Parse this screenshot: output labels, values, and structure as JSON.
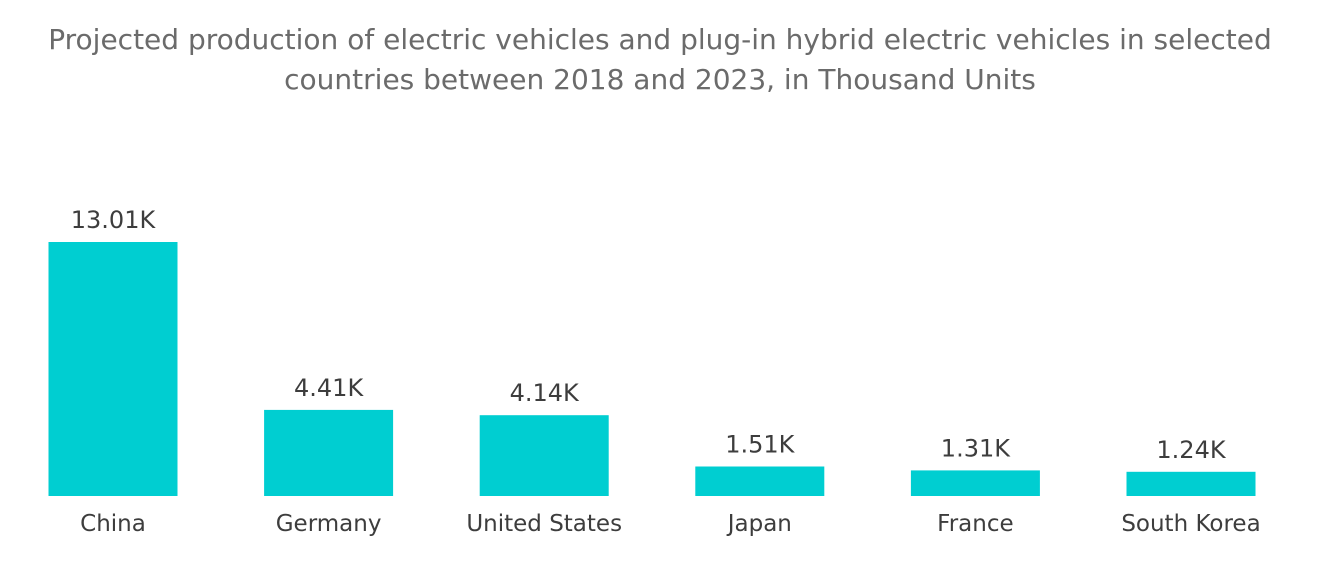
{
  "chart_data": {
    "type": "bar",
    "title_lines": [
      "Projected production of electric vehicles and plug-in hybrid electric vehicles in selected",
      "countries between 2018 and 2023, in Thousand Units"
    ],
    "categories": [
      "China",
      "Germany",
      "United States",
      "Japan",
      "France",
      "South Korea"
    ],
    "values": [
      13.01,
      4.41,
      4.14,
      1.51,
      1.31,
      1.24
    ],
    "value_labels": [
      "13.01K",
      "4.41K",
      "4.14K",
      "1.51K",
      "1.31K",
      "1.24K"
    ],
    "unit": "Thousand Units",
    "xlabel": "",
    "ylabel": "",
    "ylim": [
      0,
      13.01
    ],
    "grid": false,
    "legend": "none",
    "bar_color": "#00CED1"
  }
}
